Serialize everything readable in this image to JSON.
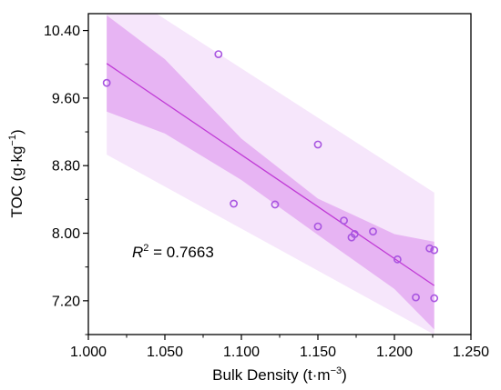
{
  "chart_data": {
    "type": "scatter",
    "x_label": {
      "main": "Bulk Density (t·m",
      "sup": "−3",
      "tail": ")"
    },
    "y_label": {
      "main": "TOC (g·kg",
      "sup": "−1",
      "tail": ")"
    },
    "xlim": [
      1.0,
      1.25
    ],
    "ylim": [
      6.8,
      10.6
    ],
    "x_ticks": [
      "1.000",
      "1.050",
      "1.100",
      "1.150",
      "1.200",
      "1.250"
    ],
    "y_ticks": [
      "7.20",
      "8.00",
      "8.80",
      "9.60",
      "10.40"
    ],
    "points": [
      {
        "x": 1.012,
        "y": 9.78
      },
      {
        "x": 1.085,
        "y": 10.12
      },
      {
        "x": 1.095,
        "y": 8.35
      },
      {
        "x": 1.122,
        "y": 8.34
      },
      {
        "x": 1.15,
        "y": 9.05
      },
      {
        "x": 1.15,
        "y": 8.08
      },
      {
        "x": 1.167,
        "y": 8.15
      },
      {
        "x": 1.172,
        "y": 7.95
      },
      {
        "x": 1.174,
        "y": 7.99
      },
      {
        "x": 1.186,
        "y": 8.02
      },
      {
        "x": 1.202,
        "y": 7.69
      },
      {
        "x": 1.214,
        "y": 7.24
      },
      {
        "x": 1.223,
        "y": 7.82
      },
      {
        "x": 1.226,
        "y": 7.8
      },
      {
        "x": 1.226,
        "y": 7.23
      }
    ],
    "fit_line": {
      "x": [
        1.012,
        1.226
      ],
      "y": [
        10.01,
        7.38
      ]
    },
    "confidence_band": {
      "x": [
        1.012,
        1.05,
        1.1,
        1.15,
        1.2,
        1.226
      ],
      "upper": [
        10.58,
        10.06,
        9.12,
        8.41,
        7.99,
        7.9
      ],
      "lower": [
        9.44,
        9.18,
        8.63,
        7.98,
        7.34,
        6.86
      ]
    },
    "prediction_band": {
      "x": [
        1.012,
        1.226
      ],
      "upper": [
        10.98,
        8.48
      ],
      "lower": [
        8.93,
        6.8
      ]
    },
    "colors": {
      "points": "#a855e0",
      "fit_line": "#c03bd6",
      "confidence_band": "#e7b4f3",
      "prediction_band": "#f6e6fb"
    },
    "annotation": {
      "r_label": "R",
      "r_sup": "2",
      "value": " = 0.7663"
    }
  }
}
